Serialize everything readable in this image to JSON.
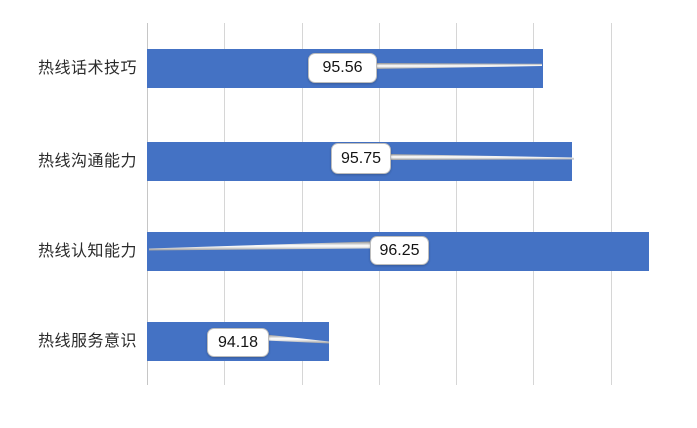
{
  "chart_data": {
    "type": "bar",
    "orientation": "horizontal",
    "title": "",
    "xlabel": "",
    "ylabel": "",
    "categories": [
      "热线话术技巧",
      "热线沟通能力",
      "热线认知能力",
      "热线服务意识"
    ],
    "values": [
      95.56,
      95.75,
      96.25,
      94.18
    ],
    "data_labels": [
      "95.56",
      "95.75",
      "96.25",
      "94.18"
    ],
    "data_label_style": "white-rounded-callout-with-leader-line",
    "xlim": [
      93,
      96.5
    ],
    "gridlines_at": [
      93,
      93.5,
      94,
      94.5,
      95,
      95.5,
      96
    ],
    "grid": "vertical",
    "legend": "none",
    "value_axis_labels_visible": false,
    "bar_color": "#4472C4",
    "gridline_color": "#D6D6D6",
    "category_label_color": "#2B2B2B",
    "callout_bg": "#FFFFFF",
    "callout_border_color": "#BDBDBD"
  }
}
